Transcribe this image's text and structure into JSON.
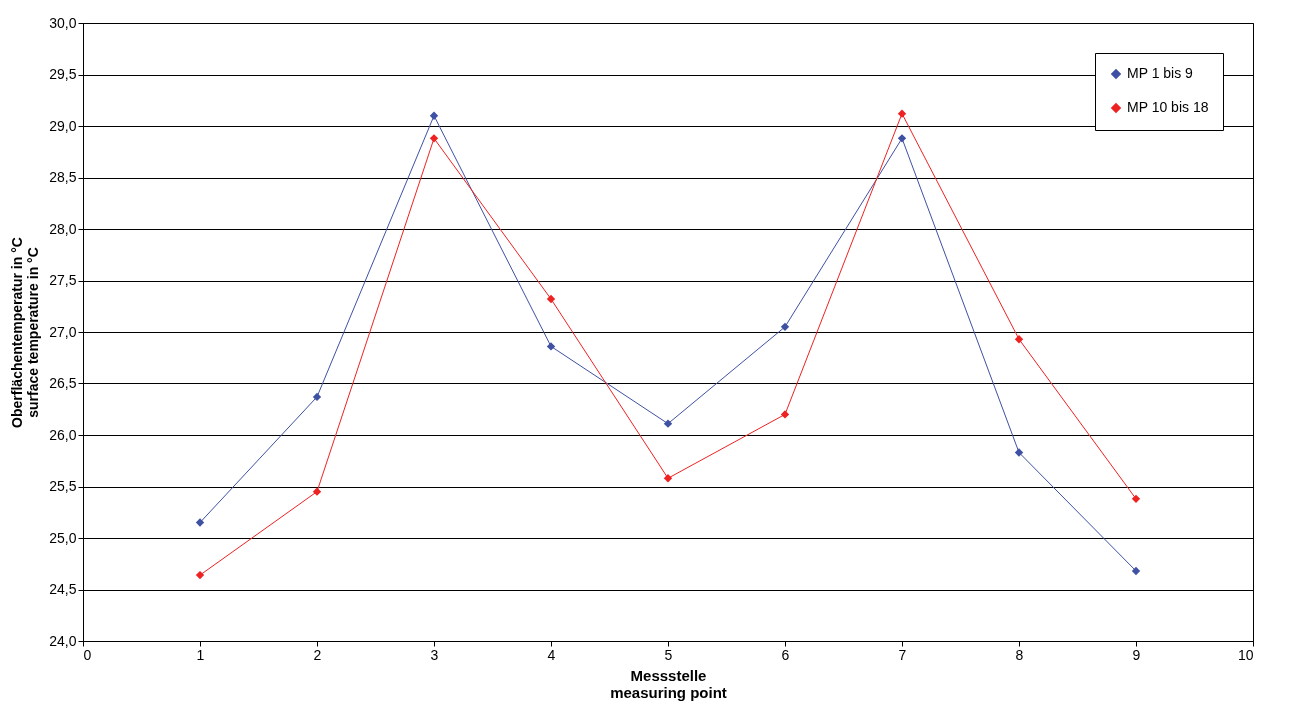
{
  "chart_data": {
    "type": "line",
    "xlabel": "Messstelle\nmeasuring point",
    "ylabel": "Oberflächentemperatur in °C\nsurface temperature in °C",
    "x": [
      1,
      2,
      3,
      4,
      5,
      6,
      7,
      8,
      9
    ],
    "series": [
      {
        "name": "MP 1 bis 9",
        "color": "#3f51a3",
        "values": [
          25.15,
          26.37,
          29.1,
          26.86,
          26.11,
          27.05,
          28.88,
          25.83,
          24.68
        ]
      },
      {
        "name": "MP 10 bis 18",
        "color": "#ee2222",
        "values": [
          24.64,
          25.45,
          28.88,
          27.32,
          25.58,
          26.2,
          29.12,
          26.93,
          25.38
        ]
      }
    ],
    "xlim": [
      0,
      10
    ],
    "xticks": [
      0,
      1,
      2,
      3,
      4,
      5,
      6,
      7,
      8,
      9,
      10
    ],
    "ylim": [
      24,
      30
    ],
    "yticks": [
      {
        "value": 24,
        "label": "24,0"
      },
      {
        "value": 24.5,
        "label": "24,5"
      },
      {
        "value": 25,
        "label": "25,0"
      },
      {
        "value": 25.5,
        "label": "25,5"
      },
      {
        "value": 26,
        "label": "26,0"
      },
      {
        "value": 26.5,
        "label": "26,5"
      },
      {
        "value": 27,
        "label": "27,0"
      },
      {
        "value": 27.5,
        "label": "27,5"
      },
      {
        "value": 28,
        "label": "28,0"
      },
      {
        "value": 28.5,
        "label": "28,5"
      },
      {
        "value": 29,
        "label": "29,0"
      },
      {
        "value": 29.5,
        "label": "29,5"
      },
      {
        "value": 30,
        "label": "30,0"
      }
    ],
    "grid": "y",
    "legend": "top right",
    "marker": "diamond",
    "line_style": "solid"
  }
}
